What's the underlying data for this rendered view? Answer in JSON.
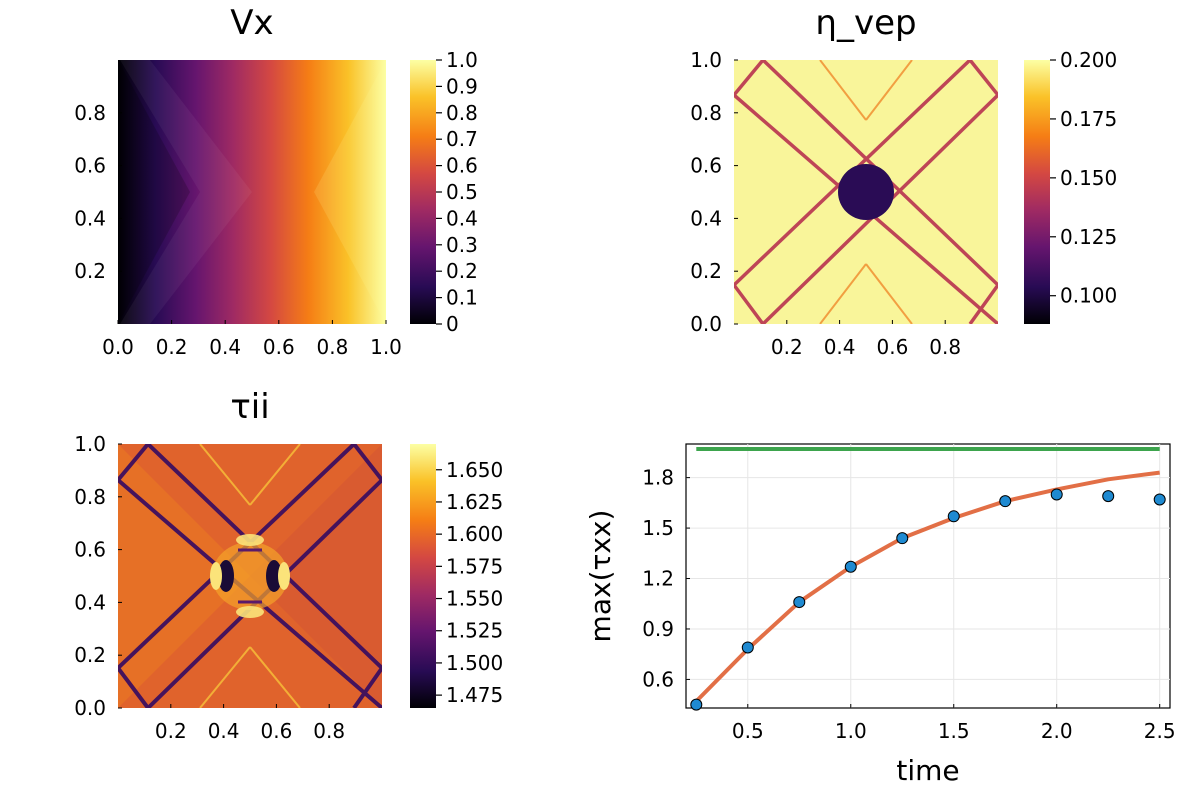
{
  "colors": {
    "inferno": [
      "#000004",
      "#280b54",
      "#65156e",
      "#9f2a63",
      "#d44842",
      "#f57d15",
      "#fac228",
      "#fcffa4"
    ],
    "orange_line": "#e26f46",
    "green_line": "#3da44d",
    "scatter": "#1f8ad1"
  },
  "chart_data": [
    {
      "type": "heatmap",
      "title": "Vx",
      "x_ticks": [
        "0.0",
        "0.2",
        "0.4",
        "0.6",
        "0.8",
        "1.0"
      ],
      "x_tick_values": [
        0,
        0.2,
        0.4,
        0.6,
        0.8,
        1.0
      ],
      "y_ticks": [
        "0.2",
        "0.4",
        "0.6",
        "0.8"
      ],
      "y_tick_values": [
        0.2,
        0.4,
        0.6,
        0.8
      ],
      "colorbar": {
        "range": [
          0,
          1.0
        ],
        "ticks": [
          "0",
          "0.1",
          "0.2",
          "0.3",
          "0.4",
          "0.5",
          "0.6",
          "0.7",
          "0.8",
          "0.9",
          "1.0"
        ],
        "tick_values": [
          0,
          0.1,
          0.2,
          0.3,
          0.4,
          0.5,
          0.6,
          0.7,
          0.8,
          0.9,
          1.0
        ]
      }
    },
    {
      "type": "heatmap",
      "title": "η_vep",
      "x_ticks": [
        "0.2",
        "0.4",
        "0.6",
        "0.8"
      ],
      "x_tick_values": [
        0.2,
        0.4,
        0.6,
        0.8
      ],
      "y_ticks": [
        "0.0",
        "0.2",
        "0.4",
        "0.6",
        "0.8",
        "1.0"
      ],
      "y_tick_values": [
        0,
        0.2,
        0.4,
        0.6,
        0.8,
        1.0
      ],
      "colorbar": {
        "range": [
          0.088,
          0.2
        ],
        "ticks": [
          "0.100",
          "0.125",
          "0.150",
          "0.175",
          "0.200"
        ],
        "tick_values": [
          0.1,
          0.125,
          0.15,
          0.175,
          0.2
        ]
      }
    },
    {
      "type": "heatmap",
      "title": "τii",
      "x_ticks": [
        "0.2",
        "0.4",
        "0.6",
        "0.8"
      ],
      "x_tick_values": [
        0.2,
        0.4,
        0.6,
        0.8
      ],
      "y_ticks": [
        "0.0",
        "0.2",
        "0.4",
        "0.6",
        "0.8",
        "1.0"
      ],
      "y_tick_values": [
        0,
        0.2,
        0.4,
        0.6,
        0.8,
        1.0
      ],
      "colorbar": {
        "range": [
          1.465,
          1.67
        ],
        "ticks": [
          "1.475",
          "1.500",
          "1.525",
          "1.550",
          "1.575",
          "1.600",
          "1.625",
          "1.650"
        ],
        "tick_values": [
          1.475,
          1.5,
          1.525,
          1.55,
          1.575,
          1.6,
          1.625,
          1.65
        ]
      }
    },
    {
      "type": "line",
      "xlabel": "time",
      "ylabel": "max(τxx)",
      "xlim": [
        0.2,
        2.55
      ],
      "ylim": [
        0.43,
        2.0
      ],
      "grid": true,
      "x_ticks": [
        "0.5",
        "1.0",
        "1.5",
        "2.0",
        "2.5"
      ],
      "x_tick_values": [
        0.5,
        1.0,
        1.5,
        2.0,
        2.5
      ],
      "y_ticks": [
        "0.6",
        "0.9",
        "1.2",
        "1.5",
        "1.8"
      ],
      "y_tick_values": [
        0.6,
        0.9,
        1.2,
        1.5,
        1.8
      ],
      "series": [
        {
          "type": "scatter",
          "x": [
            0.25,
            0.5,
            0.75,
            1.0,
            1.25,
            1.5,
            1.75,
            2.0,
            2.25,
            2.5
          ],
          "y": [
            0.45,
            0.79,
            1.06,
            1.27,
            1.44,
            1.57,
            1.66,
            1.7,
            1.69,
            1.67
          ]
        },
        {
          "type": "line",
          "x": [
            0.25,
            0.5,
            0.75,
            1.0,
            1.25,
            1.5,
            1.75,
            2.0,
            2.25,
            2.5
          ],
          "y": [
            0.47,
            0.78,
            1.06,
            1.27,
            1.44,
            1.56,
            1.66,
            1.73,
            1.79,
            1.83
          ]
        },
        {
          "type": "line",
          "x": [
            0.25,
            2.5
          ],
          "y": [
            1.97,
            1.97
          ]
        }
      ]
    }
  ]
}
